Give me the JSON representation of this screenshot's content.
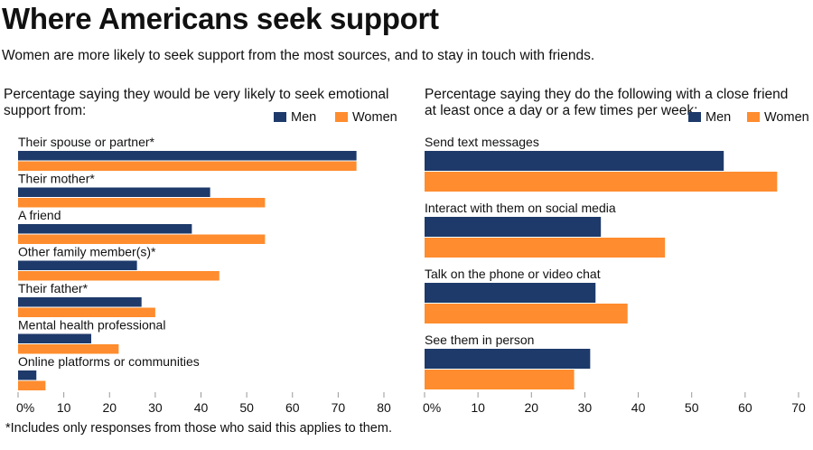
{
  "title": "Where Americans seek support",
  "subtitle": "Women are more likely to seek support from the most sources, and to stay in touch with friends.",
  "footnote": "*Includes only responses from those who said this applies to them.",
  "colors": {
    "men": "#1e3a6a",
    "women": "#ff8c2e"
  },
  "chart_data": [
    {
      "type": "bar",
      "orientation": "horizontal",
      "title": "Percentage saying they would be very likely to seek emotional support from:",
      "title_lines": [
        "Percentage saying they would be very likely to seek emotional",
        "support from:"
      ],
      "categories": [
        "Their spouse or partner*",
        "Their mother*",
        "A friend",
        "Other family member(s)*",
        "Their father*",
        "Mental health professional",
        "Online platforms or communities"
      ],
      "series": [
        {
          "name": "Men",
          "values": [
            74,
            42,
            38,
            26,
            27,
            16,
            4
          ]
        },
        {
          "name": "Women",
          "values": [
            74,
            54,
            54,
            44,
            30,
            22,
            6
          ]
        }
      ],
      "xlim": [
        0,
        80
      ],
      "xticks": [
        "0%",
        "10",
        "20",
        "30",
        "40",
        "50",
        "60",
        "70",
        "80"
      ],
      "legend": "top-right",
      "grid": false
    },
    {
      "type": "bar",
      "orientation": "horizontal",
      "title": "Percentage saying they do the following with a close friend at least once a day or a few times per week:",
      "title_lines": [
        "Percentage saying they do the following with a close friend",
        "at least once a day or a few times per week:"
      ],
      "categories": [
        "Send text messages",
        "Interact with them on social media",
        "Talk on the phone or video chat",
        "See them in person"
      ],
      "series": [
        {
          "name": "Men",
          "values": [
            56,
            33,
            32,
            31
          ]
        },
        {
          "name": "Women",
          "values": [
            66,
            45,
            38,
            28
          ]
        }
      ],
      "xlim": [
        0,
        70
      ],
      "xticks": [
        "0%",
        "10",
        "20",
        "30",
        "40",
        "50",
        "60",
        "70"
      ],
      "legend": "top-right",
      "grid": false
    }
  ]
}
